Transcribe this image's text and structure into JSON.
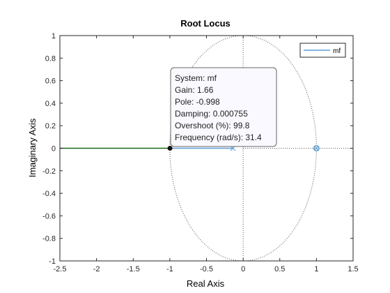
{
  "chart_data": {
    "type": "line",
    "title": "Root Locus",
    "xlabel": "Real Axis",
    "ylabel": "Imaginary Axis",
    "xlim": [
      -2.5,
      1.5
    ],
    "ylim": [
      -1,
      1
    ],
    "x_ticks": [
      "-2.5",
      "-2",
      "-1.5",
      "-1",
      "-0.5",
      "0",
      "0.5",
      "1",
      "1.5"
    ],
    "y_ticks": [
      "-1",
      "-0.8",
      "-0.6",
      "-0.4",
      "-0.2",
      "0",
      "0.2",
      "0.4",
      "0.6",
      "0.8",
      "1"
    ],
    "grid": false,
    "legend_position": "top-right",
    "legend": [
      "mf"
    ],
    "series": [
      {
        "name": "mf",
        "color": "#5b9bd5",
        "branches": [
          {
            "color": "#5b9bd5",
            "points": [
              [
                -0.14,
                0
              ],
              [
                -1.0,
                0
              ]
            ]
          },
          {
            "color": "#1a6b1a",
            "points": [
              [
                -1.0,
                0
              ],
              [
                -2.5,
                0
              ]
            ]
          }
        ],
        "poles": [
          [
            -0.14,
            0
          ]
        ],
        "zeros": [
          [
            1.0,
            0
          ]
        ]
      }
    ],
    "unit_circle": true,
    "real_axis_dotted": [
      0,
      1.5
    ],
    "selected_point": [
      -0.998,
      0
    ],
    "datatip": {
      "lines": [
        "System: mf",
        "Gain: 1.66",
        "Pole: -0.998",
        "Damping: 0.000755",
        "Overshoot (%): 99.8",
        "Frequency (rad/s): 31.4"
      ]
    }
  }
}
